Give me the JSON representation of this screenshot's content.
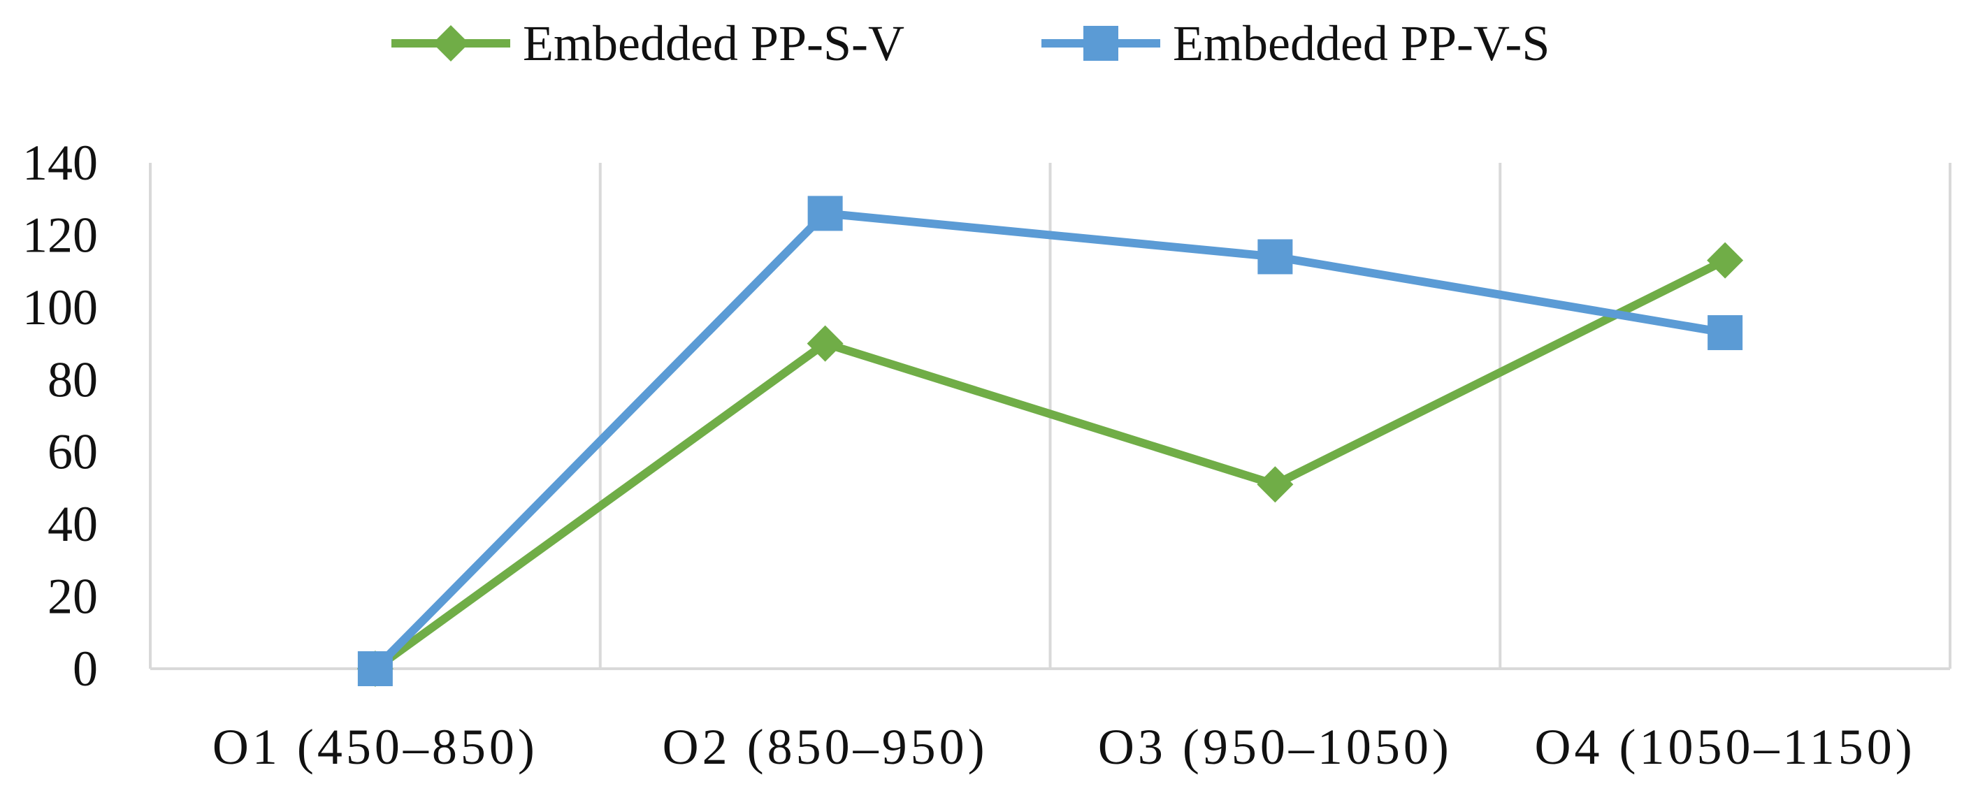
{
  "chart_data": {
    "type": "line",
    "title": "",
    "xlabel": "",
    "ylabel": "",
    "categories": [
      "O1 (450–850)",
      "O2 (850–950)",
      "O3 (950–1050)",
      "O4 (1050–1150)"
    ],
    "ylim": [
      0,
      140
    ],
    "yticks": [
      "0",
      "20",
      "40",
      "60",
      "80",
      "100",
      "120",
      "140"
    ],
    "grid": "vertical",
    "legend_position": "top-center",
    "series": [
      {
        "name": "Embedded PP-S-V",
        "values": [
          0,
          90,
          51,
          113
        ],
        "color": "#70ad47",
        "marker": "diamond"
      },
      {
        "name": "Embedded PP-V-S",
        "values": [
          0,
          126,
          114,
          93
        ],
        "color": "#5b9bd5",
        "marker": "square"
      }
    ]
  }
}
